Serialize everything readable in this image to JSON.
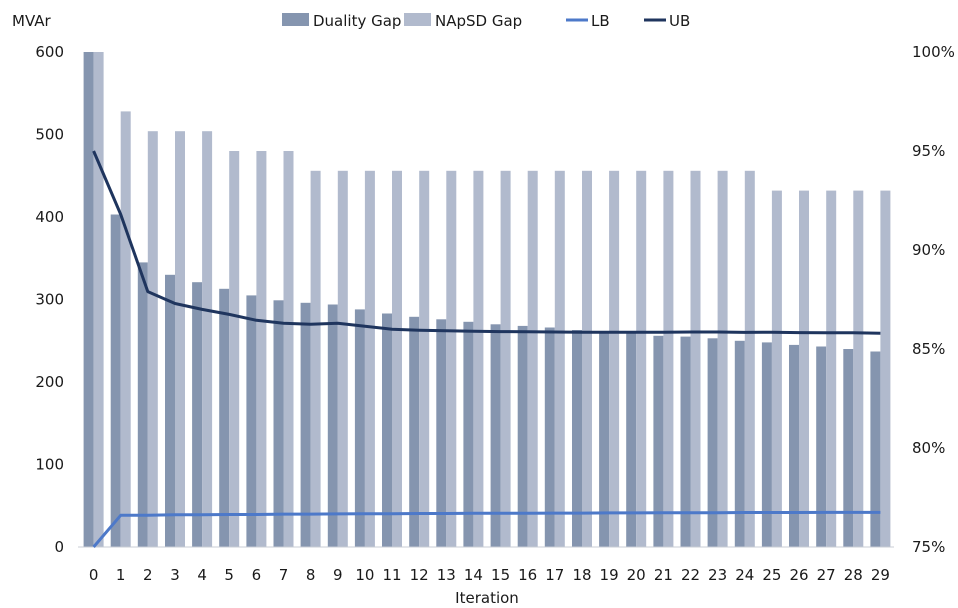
{
  "chart_data": {
    "type": "bar",
    "categories": [
      "0",
      "1",
      "2",
      "3",
      "4",
      "5",
      "6",
      "7",
      "8",
      "9",
      "10",
      "11",
      "12",
      "13",
      "14",
      "15",
      "16",
      "17",
      "18",
      "19",
      "20",
      "21",
      "22",
      "23",
      "24",
      "25",
      "26",
      "27",
      "28",
      "29"
    ],
    "xlabel": "Iteration",
    "ylabel": "MVAr",
    "ylim": [
      0,
      600
    ],
    "yticks": [
      "0",
      "100",
      "200",
      "300",
      "400",
      "500",
      "600"
    ],
    "y2lim": [
      75,
      100
    ],
    "y2ticks": [
      "75%",
      "80%",
      "85%",
      "90%",
      "95%",
      "100%"
    ],
    "legend_position": "top-center",
    "grid": false,
    "series": [
      {
        "name": "Duality Gap",
        "type": "bar",
        "axis": "left",
        "color": "#8595af",
        "values": [
          600,
          403,
          345,
          330,
          321,
          313,
          305,
          299,
          296,
          294,
          288,
          283,
          279,
          276,
          273,
          270,
          268,
          266,
          263,
          261,
          259,
          256,
          255,
          253,
          250,
          248,
          245,
          243,
          240,
          237
        ]
      },
      {
        "name": "NApSD Gap",
        "type": "bar",
        "axis": "left",
        "color": "#b1bacd",
        "values": [
          600,
          528,
          504,
          504,
          504,
          480,
          480,
          480,
          456,
          456,
          456,
          456,
          456,
          456,
          456,
          456,
          456,
          456,
          456,
          456,
          456,
          456,
          456,
          456,
          456,
          432,
          432,
          432,
          432,
          432
        ]
      },
      {
        "name": "LB",
        "type": "line",
        "axis": "right",
        "color": "#4d79c9",
        "values": [
          75.0,
          76.6,
          76.6,
          76.63,
          76.63,
          76.64,
          76.64,
          76.66,
          76.66,
          76.67,
          76.68,
          76.68,
          76.69,
          76.69,
          76.7,
          76.7,
          76.7,
          76.71,
          76.71,
          76.72,
          76.72,
          76.73,
          76.73,
          76.73,
          76.74,
          76.74,
          76.74,
          76.75,
          76.75,
          76.75
        ]
      },
      {
        "name": "UB",
        "type": "line",
        "axis": "right",
        "color": "#1f355e",
        "values": [
          95.0,
          91.8,
          87.9,
          87.3,
          87.0,
          86.75,
          86.45,
          86.3,
          86.25,
          86.3,
          86.15,
          86.0,
          85.95,
          85.92,
          85.9,
          85.88,
          85.87,
          85.86,
          85.85,
          85.85,
          85.85,
          85.85,
          85.86,
          85.86,
          85.84,
          85.85,
          85.83,
          85.82,
          85.82,
          85.8
        ]
      }
    ]
  }
}
